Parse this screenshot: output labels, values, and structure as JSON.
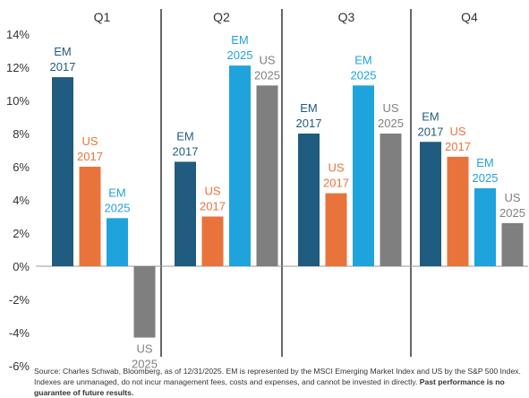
{
  "chart_data": {
    "type": "bar",
    "groups": [
      "Q1",
      "Q2",
      "Q3",
      "Q4"
    ],
    "series": [
      {
        "name": "EM 2017",
        "label_lines": [
          "EM",
          "2017"
        ],
        "color": "#1f5c80",
        "label_color": "#1f5c80",
        "values": [
          11.4,
          6.3,
          8.0,
          7.5
        ]
      },
      {
        "name": "US 2017",
        "label_lines": [
          "US",
          "2017"
        ],
        "color": "#e8743b",
        "label_color": "#e8743b",
        "values": [
          6.0,
          3.0,
          4.4,
          6.6
        ]
      },
      {
        "name": "EM 2025",
        "label_lines": [
          "EM",
          "2025"
        ],
        "color": "#1fa3dc",
        "label_color": "#1fa3dc",
        "values": [
          2.9,
          12.1,
          10.9,
          4.7
        ]
      },
      {
        "name": "US 2025",
        "label_lines": [
          "US",
          "2025"
        ],
        "color": "#7f7f7f",
        "label_color": "#808080",
        "values": [
          -4.3,
          10.9,
          8.0,
          2.6
        ]
      }
    ],
    "ylim": [
      -6,
      14
    ],
    "yticks": [
      14,
      12,
      10,
      8,
      6,
      4,
      2,
      0,
      -2,
      -4,
      -6
    ],
    "ytick_labels": [
      "14%",
      "12%",
      "10%",
      "8%",
      "6%",
      "4%",
      "2%",
      "0%",
      "-2%",
      "-4%",
      "-6%"
    ],
    "grid": false,
    "legend": "none",
    "xlabel": "",
    "ylabel": ""
  },
  "source_note": {
    "text": "Source: Charles Schwab, Bloomberg, as of 12/31/2025. EM is represented by the MSCI Emerging Market Index and US by the S&P 500 Index. Indexes are unmanaged, do not incur management fees, costs and expenses, and cannot be invested in directly. ",
    "bold": "Past performance is no guarantee of future results."
  }
}
